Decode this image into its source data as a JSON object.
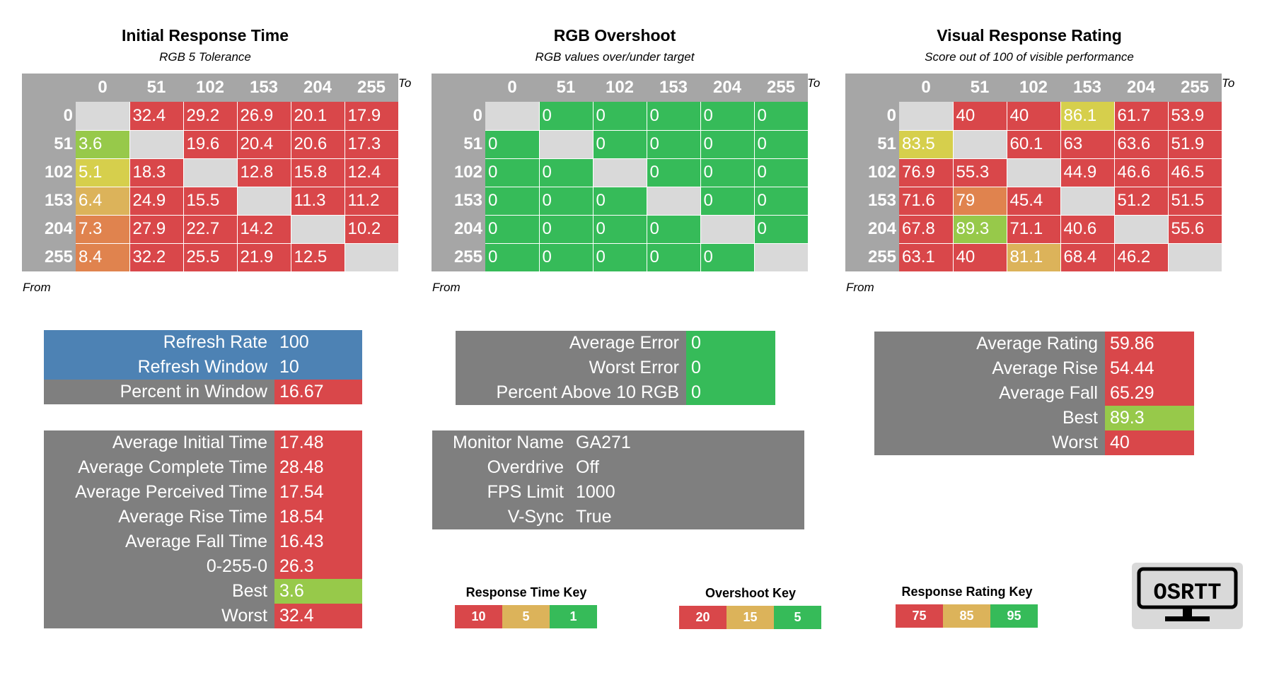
{
  "colors": {
    "red": "#d9474a",
    "orange": "#e0834e",
    "tan": "#dcb35a",
    "yellow": "#d6cf4c",
    "lime": "#97c94a",
    "green": "#36bb59",
    "blue": "#4d82b4",
    "gray": "#7f7f7f",
    "header_gray": "#a6a6a6",
    "empty_gray": "#d9d9d9"
  },
  "chart_data": [
    {
      "type": "heatmap",
      "title": "Initial Response Time",
      "subtitle": "RGB 5 Tolerance",
      "x_axis_label": "To",
      "y_axis_label": "From",
      "columns": [
        "0",
        "51",
        "102",
        "153",
        "204",
        "255"
      ],
      "rows": [
        "0",
        "51",
        "102",
        "153",
        "204",
        "255"
      ],
      "values": [
        [
          null,
          "32.4",
          "29.2",
          "26.9",
          "20.1",
          "17.9"
        ],
        [
          "3.6",
          null,
          "19.6",
          "20.4",
          "20.6",
          "17.3"
        ],
        [
          "5.1",
          "18.3",
          null,
          "12.8",
          "15.8",
          "12.4"
        ],
        [
          "6.4",
          "24.9",
          "15.5",
          null,
          "11.3",
          "11.2"
        ],
        [
          "7.3",
          "27.9",
          "22.7",
          "14.2",
          null,
          "10.2"
        ],
        [
          "8.4",
          "32.2",
          "25.5",
          "21.9",
          "12.5",
          null
        ]
      ],
      "colors": [
        [
          null,
          "red",
          "red",
          "red",
          "red",
          "red"
        ],
        [
          "lime",
          null,
          "red",
          "red",
          "red",
          "red"
        ],
        [
          "yellow",
          "red",
          null,
          "red",
          "red",
          "red"
        ],
        [
          "tan",
          "red",
          "red",
          null,
          "red",
          "red"
        ],
        [
          "orange",
          "red",
          "red",
          "red",
          null,
          "red"
        ],
        [
          "orange",
          "red",
          "red",
          "red",
          "red",
          null
        ]
      ]
    },
    {
      "type": "heatmap",
      "title": "RGB Overshoot",
      "subtitle": "RGB values over/under target",
      "x_axis_label": "To",
      "y_axis_label": "From",
      "columns": [
        "0",
        "51",
        "102",
        "153",
        "204",
        "255"
      ],
      "rows": [
        "0",
        "51",
        "102",
        "153",
        "204",
        "255"
      ],
      "values": [
        [
          null,
          "0",
          "0",
          "0",
          "0",
          "0"
        ],
        [
          "0",
          null,
          "0",
          "0",
          "0",
          "0"
        ],
        [
          "0",
          "0",
          null,
          "0",
          "0",
          "0"
        ],
        [
          "0",
          "0",
          "0",
          null,
          "0",
          "0"
        ],
        [
          "0",
          "0",
          "0",
          "0",
          null,
          "0"
        ],
        [
          "0",
          "0",
          "0",
          "0",
          "0",
          null
        ]
      ],
      "colors": [
        [
          null,
          "green",
          "green",
          "green",
          "green",
          "green"
        ],
        [
          "green",
          null,
          "green",
          "green",
          "green",
          "green"
        ],
        [
          "green",
          "green",
          null,
          "green",
          "green",
          "green"
        ],
        [
          "green",
          "green",
          "green",
          null,
          "green",
          "green"
        ],
        [
          "green",
          "green",
          "green",
          "green",
          null,
          "green"
        ],
        [
          "green",
          "green",
          "green",
          "green",
          "green",
          null
        ]
      ]
    },
    {
      "type": "heatmap",
      "title": "Visual Response Rating",
      "subtitle": "Score out of 100 of visible performance",
      "x_axis_label": "To",
      "y_axis_label": "From",
      "columns": [
        "0",
        "51",
        "102",
        "153",
        "204",
        "255"
      ],
      "rows": [
        "0",
        "51",
        "102",
        "153",
        "204",
        "255"
      ],
      "values": [
        [
          null,
          "40",
          "40",
          "86.1",
          "61.7",
          "53.9"
        ],
        [
          "83.5",
          null,
          "60.1",
          "63",
          "63.6",
          "51.9"
        ],
        [
          "76.9",
          "55.3",
          null,
          "44.9",
          "46.6",
          "46.5"
        ],
        [
          "71.6",
          "79",
          "45.4",
          null,
          "51.2",
          "51.5"
        ],
        [
          "67.8",
          "89.3",
          "71.1",
          "40.6",
          null,
          "55.6"
        ],
        [
          "63.1",
          "40",
          "81.1",
          "68.4",
          "46.2",
          null
        ]
      ],
      "colors": [
        [
          null,
          "red",
          "red",
          "yellow",
          "red",
          "red"
        ],
        [
          "yellow",
          null,
          "red",
          "red",
          "red",
          "red"
        ],
        [
          "red",
          "red",
          null,
          "red",
          "red",
          "red"
        ],
        [
          "red",
          "orange",
          "red",
          null,
          "red",
          "red"
        ],
        [
          "red",
          "lime",
          "red",
          "red",
          null,
          "red"
        ],
        [
          "red",
          "red",
          "tan",
          "red",
          "red",
          null
        ]
      ]
    }
  ],
  "refresh_panel": {
    "rows": [
      {
        "label": "Refresh Rate",
        "value": "100",
        "label_bg": "blue",
        "value_bg": "blue"
      },
      {
        "label": "Refresh Window",
        "value": "10",
        "label_bg": "blue",
        "value_bg": "blue"
      },
      {
        "label": "Percent in Window",
        "value": "16.67",
        "label_bg": "gray",
        "value_bg": "red"
      }
    ]
  },
  "time_stats": {
    "rows": [
      {
        "label": "Average Initial Time",
        "value": "17.48",
        "value_bg": "red"
      },
      {
        "label": "Average Complete Time",
        "value": "28.48",
        "value_bg": "red"
      },
      {
        "label": "Average Perceived Time",
        "value": "17.54",
        "value_bg": "red"
      },
      {
        "label": "Average Rise Time",
        "value": "18.54",
        "value_bg": "red"
      },
      {
        "label": "Average Fall Time",
        "value": "16.43",
        "value_bg": "red"
      },
      {
        "label": "0-255-0",
        "value": "26.3",
        "value_bg": "red"
      },
      {
        "label": "Best",
        "value": "3.6",
        "value_bg": "lime"
      },
      {
        "label": "Worst",
        "value": "32.4",
        "value_bg": "red"
      }
    ]
  },
  "overshoot_stats": {
    "rows": [
      {
        "label": "Average Error",
        "value": "0",
        "value_bg": "green"
      },
      {
        "label": "Worst Error",
        "value": "0",
        "value_bg": "green"
      },
      {
        "label": "Percent Above 10 RGB",
        "value": "0",
        "value_bg": "green"
      }
    ]
  },
  "monitor_info": {
    "rows": [
      {
        "label": "Monitor Name",
        "value": "GA271",
        "value_bg": "gray"
      },
      {
        "label": "Overdrive",
        "value": "Off",
        "value_bg": "gray"
      },
      {
        "label": "FPS Limit",
        "value": "1000",
        "value_bg": "gray"
      },
      {
        "label": "V-Sync",
        "value": "True",
        "value_bg": "gray"
      }
    ]
  },
  "rating_stats": {
    "rows": [
      {
        "label": "Average Rating",
        "value": "59.86",
        "value_bg": "red"
      },
      {
        "label": "Average Rise",
        "value": "54.44",
        "value_bg": "red"
      },
      {
        "label": "Average Fall",
        "value": "65.29",
        "value_bg": "red"
      },
      {
        "label": "Best",
        "value": "89.3",
        "value_bg": "lime"
      },
      {
        "label": "Worst",
        "value": "40",
        "value_bg": "red"
      }
    ]
  },
  "keys": [
    {
      "title": "Response Time Key",
      "items": [
        {
          "text": "10",
          "color": "red"
        },
        {
          "text": "5",
          "color": "tan"
        },
        {
          "text": "1",
          "color": "green"
        }
      ]
    },
    {
      "title": "Overshoot Key",
      "items": [
        {
          "text": "20",
          "color": "red"
        },
        {
          "text": "15",
          "color": "tan"
        },
        {
          "text": "5",
          "color": "green"
        }
      ]
    },
    {
      "title": "Response Rating Key",
      "items": [
        {
          "text": "75",
          "color": "red"
        },
        {
          "text": "85",
          "color": "tan"
        },
        {
          "text": "95",
          "color": "green"
        }
      ]
    }
  ],
  "logo": {
    "text": "OSRTT",
    "icon": "monitor-logo-icon"
  }
}
